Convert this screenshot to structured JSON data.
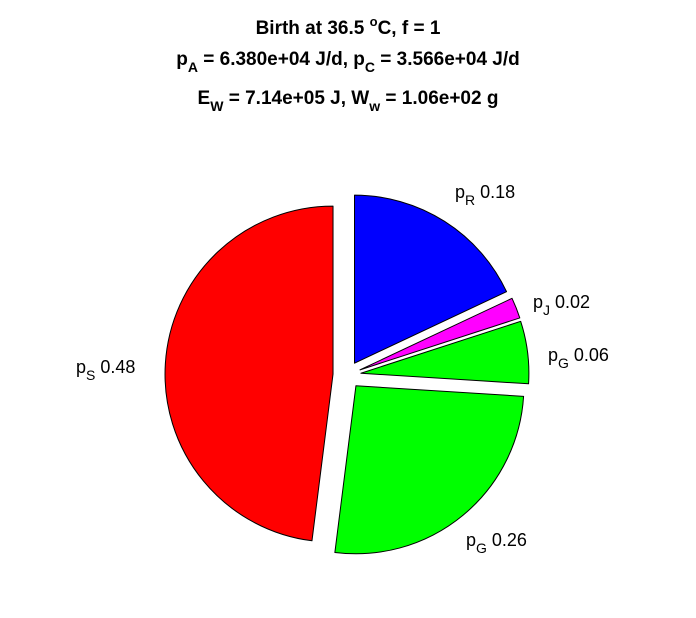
{
  "chart_data": {
    "type": "pie",
    "title": {
      "line1": {
        "prefix": "Birth at 36.5 ",
        "sup": "o",
        "suffix": "C, f = 1"
      },
      "line2": {
        "a_base": "p",
        "a_sub": "A",
        "a_value": " = 6.380e+04 J/d, ",
        "c_base": "p",
        "c_sub": "C",
        "c_value": " = 3.566e+04 J/d"
      },
      "line3": {
        "e_base": "E",
        "e_sub": "W",
        "e_value": " = 7.14e+05 J, ",
        "w_base": "W",
        "w_sub": "w",
        "w_value": " = 1.06e+02 g"
      }
    },
    "slices": [
      {
        "base": "p",
        "sub": "R",
        "value": 0.18,
        "value_label": " 0.18",
        "color": "#0000ff"
      },
      {
        "base": "p",
        "sub": "J",
        "value": 0.02,
        "value_label": " 0.02",
        "color": "#ff00ff"
      },
      {
        "base": "p",
        "sub": "G",
        "value": 0.06,
        "value_label": " 0.06",
        "color": "#00ff00"
      },
      {
        "base": "p",
        "sub": "G",
        "value": 0.26,
        "value_label": " 0.26",
        "color": "#00ff00"
      },
      {
        "base": "p",
        "sub": "S",
        "value": 0.48,
        "value_label": " 0.48",
        "color": "#ff0000"
      }
    ],
    "direction": "clockwise from top",
    "slices_exploded": true,
    "legend": "none",
    "grid": false
  }
}
